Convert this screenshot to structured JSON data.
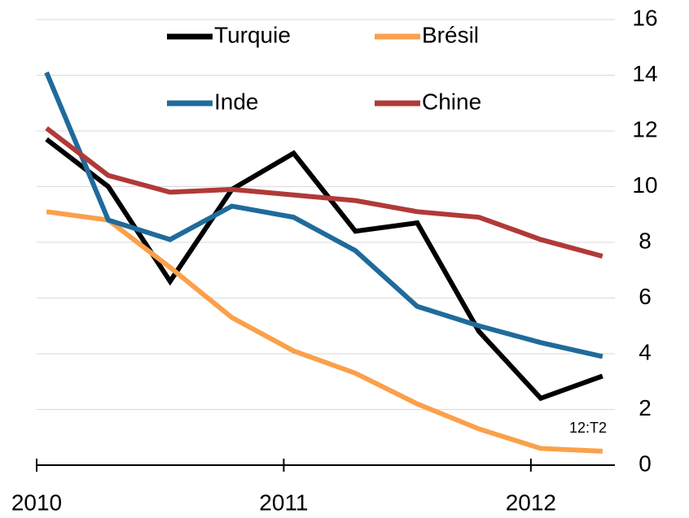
{
  "chart_data": {
    "type": "line",
    "x": [
      2010.04,
      2010.29,
      2010.54,
      2010.79,
      2011.04,
      2011.29,
      2011.54,
      2011.79,
      2012.04,
      2012.29
    ],
    "xlim": [
      2010,
      2012.34
    ],
    "xticks": [
      2010,
      2011,
      2012
    ],
    "ylim": [
      0,
      16
    ],
    "yticks": [
      0,
      2,
      4,
      6,
      8,
      10,
      12,
      14,
      16
    ],
    "grid": true,
    "legend": "top",
    "annotation": "12:T2",
    "series": [
      {
        "name": "Turquie",
        "color": "#000000",
        "values": [
          11.7,
          10.0,
          6.6,
          9.9,
          11.2,
          8.4,
          8.7,
          4.8,
          2.4,
          3.2
        ]
      },
      {
        "name": "Brésil",
        "color": "#fba04a",
        "values": [
          9.1,
          8.8,
          7.1,
          5.3,
          4.1,
          3.3,
          2.2,
          1.3,
          0.6,
          0.5
        ]
      },
      {
        "name": "Inde",
        "color": "#1f6b9b",
        "values": [
          14.1,
          8.8,
          8.1,
          9.3,
          8.9,
          7.7,
          5.7,
          5.0,
          4.4,
          3.9
        ]
      },
      {
        "name": "Chine",
        "color": "#b03a38",
        "values": [
          12.1,
          10.4,
          9.8,
          9.9,
          9.7,
          9.5,
          9.1,
          8.9,
          8.1,
          7.5
        ]
      }
    ]
  }
}
